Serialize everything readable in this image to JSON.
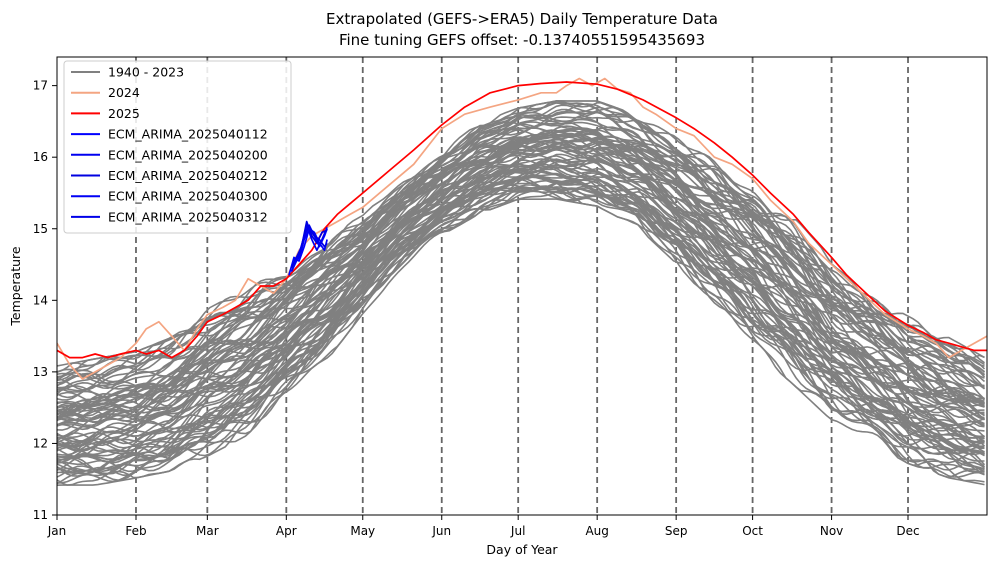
{
  "chart_data": {
    "type": "line",
    "title": "Extrapolated (GEFS->ERA5) Daily Temperature Data",
    "subtitle": "Fine tuning GEFS offset: -0.13740551595435693",
    "xlabel": "Day of Year",
    "ylabel": "Temperature",
    "xlim": [
      0,
      365
    ],
    "ylim": [
      11,
      17.4
    ],
    "yticks": [
      11,
      12,
      13,
      14,
      15,
      16,
      17
    ],
    "month_ticks": [
      {
        "label": "Jan",
        "day": 0
      },
      {
        "label": "Feb",
        "day": 31
      },
      {
        "label": "Mar",
        "day": 59
      },
      {
        "label": "Apr",
        "day": 90
      },
      {
        "label": "May",
        "day": 120
      },
      {
        "label": "Jun",
        "day": 151
      },
      {
        "label": "Jul",
        "day": 181
      },
      {
        "label": "Aug",
        "day": 212
      },
      {
        "label": "Sep",
        "day": 243
      },
      {
        "label": "Oct",
        "day": 273
      },
      {
        "label": "Nov",
        "day": 304
      },
      {
        "label": "Dec",
        "day": 334
      }
    ],
    "vlines": [
      31,
      59,
      90,
      120,
      151,
      181,
      212,
      243,
      273,
      304,
      334
    ],
    "legend_position": "top-left",
    "historical": {
      "name": "1940 - 2023",
      "color": "#808080",
      "envelope": [
        {
          "day": 0,
          "low": 11.4,
          "high": 13.1
        },
        {
          "day": 15,
          "low": 11.4,
          "high": 13.2
        },
        {
          "day": 31,
          "low": 11.5,
          "high": 13.3
        },
        {
          "day": 45,
          "low": 11.6,
          "high": 13.5
        },
        {
          "day": 59,
          "low": 11.8,
          "high": 13.9
        },
        {
          "day": 75,
          "low": 12.1,
          "high": 14.2
        },
        {
          "day": 90,
          "low": 12.6,
          "high": 14.5
        },
        {
          "day": 105,
          "low": 13.1,
          "high": 14.9
        },
        {
          "day": 120,
          "low": 13.8,
          "high": 15.2
        },
        {
          "day": 135,
          "low": 14.4,
          "high": 15.7
        },
        {
          "day": 151,
          "low": 14.9,
          "high": 16.1
        },
        {
          "day": 166,
          "low": 15.2,
          "high": 16.5
        },
        {
          "day": 181,
          "low": 15.4,
          "high": 16.7
        },
        {
          "day": 196,
          "low": 15.4,
          "high": 16.8
        },
        {
          "day": 212,
          "low": 15.3,
          "high": 16.8
        },
        {
          "day": 228,
          "low": 15.0,
          "high": 16.6
        },
        {
          "day": 243,
          "low": 14.5,
          "high": 16.3
        },
        {
          "day": 258,
          "low": 13.9,
          "high": 16.0
        },
        {
          "day": 273,
          "low": 13.3,
          "high": 15.7
        },
        {
          "day": 289,
          "low": 12.8,
          "high": 15.2
        },
        {
          "day": 304,
          "low": 12.3,
          "high": 14.6
        },
        {
          "day": 319,
          "low": 12.0,
          "high": 14.2
        },
        {
          "day": 334,
          "low": 11.7,
          "high": 13.8
        },
        {
          "day": 350,
          "low": 11.5,
          "high": 13.5
        },
        {
          "day": 365,
          "low": 11.4,
          "high": 13.2
        }
      ]
    },
    "series": [
      {
        "name": "2024",
        "color": "#f4a582",
        "points": [
          [
            0,
            13.4
          ],
          [
            5,
            13.1
          ],
          [
            10,
            12.9
          ],
          [
            15,
            13.0
          ],
          [
            20,
            13.1
          ],
          [
            25,
            13.2
          ],
          [
            31,
            13.4
          ],
          [
            35,
            13.6
          ],
          [
            40,
            13.7
          ],
          [
            45,
            13.5
          ],
          [
            50,
            13.3
          ],
          [
            55,
            13.6
          ],
          [
            59,
            13.8
          ],
          [
            65,
            13.9
          ],
          [
            70,
            14.0
          ],
          [
            75,
            14.3
          ],
          [
            80,
            14.2
          ],
          [
            85,
            14.1
          ],
          [
            90,
            14.3
          ],
          [
            95,
            14.7
          ],
          [
            100,
            14.9
          ],
          [
            105,
            15.0
          ],
          [
            110,
            15.1
          ],
          [
            115,
            15.2
          ],
          [
            120,
            15.3
          ],
          [
            130,
            15.6
          ],
          [
            140,
            15.9
          ],
          [
            151,
            16.4
          ],
          [
            160,
            16.6
          ],
          [
            170,
            16.7
          ],
          [
            181,
            16.8
          ],
          [
            190,
            16.9
          ],
          [
            196,
            16.9
          ],
          [
            200,
            17.0
          ],
          [
            205,
            17.1
          ],
          [
            210,
            17.0
          ],
          [
            215,
            17.1
          ],
          [
            220,
            16.95
          ],
          [
            225,
            16.9
          ],
          [
            230,
            16.7
          ],
          [
            235,
            16.6
          ],
          [
            243,
            16.4
          ],
          [
            250,
            16.3
          ],
          [
            258,
            16.0
          ],
          [
            265,
            15.9
          ],
          [
            273,
            15.7
          ],
          [
            280,
            15.4
          ],
          [
            289,
            15.1
          ],
          [
            295,
            14.8
          ],
          [
            304,
            14.5
          ],
          [
            310,
            14.3
          ],
          [
            319,
            14.0
          ],
          [
            325,
            13.8
          ],
          [
            334,
            13.6
          ],
          [
            340,
            13.5
          ],
          [
            345,
            13.4
          ],
          [
            350,
            13.2
          ],
          [
            355,
            13.3
          ],
          [
            360,
            13.4
          ],
          [
            365,
            13.5
          ]
        ]
      },
      {
        "name": "2025",
        "color": "#ff0000",
        "points": [
          [
            0,
            13.3
          ],
          [
            5,
            13.2
          ],
          [
            10,
            13.2
          ],
          [
            15,
            13.25
          ],
          [
            20,
            13.2
          ],
          [
            25,
            13.25
          ],
          [
            31,
            13.3
          ],
          [
            35,
            13.25
          ],
          [
            40,
            13.3
          ],
          [
            45,
            13.2
          ],
          [
            50,
            13.3
          ],
          [
            55,
            13.5
          ],
          [
            59,
            13.7
          ],
          [
            65,
            13.8
          ],
          [
            70,
            13.9
          ],
          [
            75,
            14.0
          ],
          [
            80,
            14.2
          ],
          [
            85,
            14.2
          ],
          [
            90,
            14.3
          ],
          [
            95,
            14.5
          ],
          [
            100,
            14.7
          ],
          [
            105,
            15.0
          ],
          [
            110,
            15.2
          ],
          [
            115,
            15.35
          ],
          [
            120,
            15.5
          ],
          [
            130,
            15.8
          ],
          [
            140,
            16.1
          ],
          [
            151,
            16.45
          ],
          [
            160,
            16.7
          ],
          [
            170,
            16.9
          ],
          [
            181,
            17.0
          ],
          [
            190,
            17.03
          ],
          [
            200,
            17.05
          ],
          [
            212,
            17.02
          ],
          [
            220,
            16.95
          ],
          [
            230,
            16.8
          ],
          [
            243,
            16.55
          ],
          [
            250,
            16.4
          ],
          [
            258,
            16.2
          ],
          [
            265,
            16.0
          ],
          [
            273,
            15.75
          ],
          [
            280,
            15.5
          ],
          [
            289,
            15.2
          ],
          [
            295,
            14.95
          ],
          [
            304,
            14.6
          ],
          [
            310,
            14.35
          ],
          [
            319,
            14.05
          ],
          [
            325,
            13.85
          ],
          [
            334,
            13.65
          ],
          [
            340,
            13.55
          ],
          [
            345,
            13.45
          ],
          [
            350,
            13.4
          ],
          [
            355,
            13.35
          ],
          [
            360,
            13.3
          ],
          [
            365,
            13.3
          ]
        ]
      },
      {
        "name": "ECM_ARIMA_2025040112",
        "color": "#0000ff",
        "points": [
          [
            91,
            14.35
          ],
          [
            93,
            14.6
          ],
          [
            95,
            14.55
          ],
          [
            97,
            14.75
          ],
          [
            99,
            15.0
          ],
          [
            101,
            14.9
          ],
          [
            103,
            14.75
          ],
          [
            105,
            14.9
          ],
          [
            106,
            15.0
          ]
        ]
      },
      {
        "name": "ECM_ARIMA_2025040200",
        "color": "#0000f0",
        "points": [
          [
            92,
            14.4
          ],
          [
            94,
            14.55
          ],
          [
            96,
            14.7
          ],
          [
            98,
            15.05
          ],
          [
            100,
            14.85
          ],
          [
            102,
            14.7
          ],
          [
            104,
            14.85
          ],
          [
            106,
            15.02
          ]
        ]
      },
      {
        "name": "ECM_ARIMA_2025040212",
        "color": "#0000e0",
        "points": [
          [
            92,
            14.45
          ],
          [
            94,
            14.6
          ],
          [
            96,
            14.75
          ],
          [
            98,
            15.1
          ],
          [
            100,
            14.9
          ],
          [
            102,
            14.8
          ],
          [
            104,
            14.95
          ],
          [
            106,
            14.98
          ]
        ]
      },
      {
        "name": "ECM_ARIMA_2025040300",
        "color": "#0000f5",
        "points": [
          [
            93,
            14.5
          ],
          [
            95,
            14.6
          ],
          [
            97,
            14.85
          ],
          [
            99,
            15.0
          ],
          [
            101,
            14.95
          ],
          [
            103,
            14.8
          ],
          [
            105,
            14.7
          ],
          [
            106,
            14.85
          ]
        ]
      },
      {
        "name": "ECM_ARIMA_2025040312",
        "color": "#0000e8",
        "points": [
          [
            93,
            14.55
          ],
          [
            95,
            14.65
          ],
          [
            97,
            14.9
          ],
          [
            99,
            15.05
          ],
          [
            101,
            14.9
          ],
          [
            103,
            14.85
          ],
          [
            105,
            14.75
          ],
          [
            106,
            14.8
          ]
        ]
      }
    ]
  }
}
